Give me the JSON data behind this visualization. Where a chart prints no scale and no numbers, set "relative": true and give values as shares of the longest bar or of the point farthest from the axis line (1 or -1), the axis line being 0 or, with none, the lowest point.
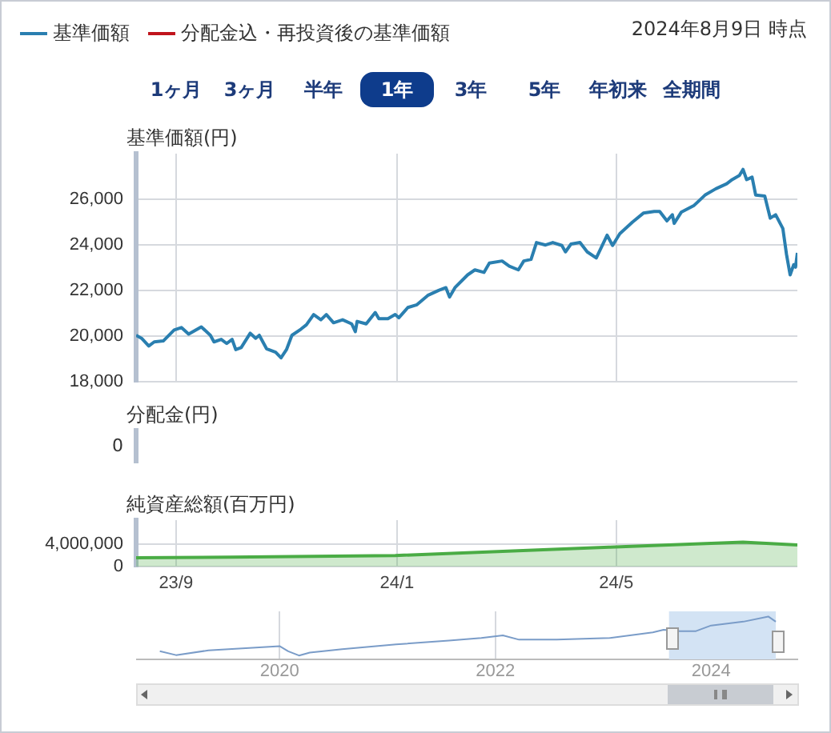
{
  "chart_data": [
    {
      "type": "line",
      "subtitle": "2024年8月9日 時点",
      "ylabel": "基準価額(円)",
      "legend": "top left",
      "tick_labels": "y",
      "grid": true,
      "marker": "none",
      "line_style": "solid",
      "annotations": [
        "1ヶ月",
        "3ヶ月",
        "半年",
        "1年",
        "3年",
        "5年",
        "年初来",
        "全期間"
      ],
      "xlim": [
        "2023-08-10",
        "2024-08-09"
      ],
      "xticks": [
        {
          "value": "2023-09-01",
          "label": null
        },
        {
          "value": "2024-01-01",
          "label": null
        },
        {
          "value": "2024-05-01",
          "label": null
        }
      ],
      "ylim": [
        18000,
        28000
      ],
      "yticks": [
        {
          "value": 18000,
          "label": "18,000"
        },
        {
          "value": 20000,
          "label": "20,000"
        },
        {
          "value": 22000,
          "label": "22,000"
        },
        {
          "value": 24000,
          "label": "24,000"
        },
        {
          "value": 26000,
          "label": "26,000"
        }
      ],
      "series": [
        {
          "name": "基準価額",
          "color": "#2a7fb0",
          "x": [
            "2023-08-10",
            "2023-08-13",
            "2023-08-17",
            "2023-08-20",
            "2023-08-25",
            "2023-08-31",
            "2023-09-04",
            "2023-09-08",
            "2023-09-15",
            "2023-09-20",
            "2023-09-22",
            "2023-09-26",
            "2023-09-29",
            "2023-10-02",
            "2023-10-04",
            "2023-10-07",
            "2023-10-12",
            "2023-10-15",
            "2023-10-17",
            "2023-10-21",
            "2023-10-26",
            "2023-10-29",
            "2023-11-01",
            "2023-11-04",
            "2023-11-09",
            "2023-11-12",
            "2023-11-16",
            "2023-11-20",
            "2023-11-23",
            "2023-11-27",
            "2023-12-02",
            "2023-12-07",
            "2023-12-09",
            "2023-12-10",
            "2023-12-15",
            "2023-12-20",
            "2023-12-22",
            "2023-12-27",
            "2023-12-31",
            "2024-01-02",
            "2024-01-07",
            "2024-01-12",
            "2024-01-18",
            "2024-01-24",
            "2024-01-28",
            "2024-01-30",
            "2024-02-02",
            "2024-02-09",
            "2024-02-13",
            "2024-02-18",
            "2024-02-21",
            "2024-02-28",
            "2024-03-03",
            "2024-03-08",
            "2024-03-11",
            "2024-03-15",
            "2024-03-18",
            "2024-03-23",
            "2024-03-27",
            "2024-04-01",
            "2024-04-03",
            "2024-04-06",
            "2024-04-11",
            "2024-04-15",
            "2024-04-20",
            "2024-04-23",
            "2024-04-26",
            "2024-04-29",
            "2024-05-03",
            "2024-05-10",
            "2024-05-16",
            "2024-05-22",
            "2024-05-25",
            "2024-05-29",
            "2024-06-01",
            "2024-06-02",
            "2024-06-06",
            "2024-06-13",
            "2024-06-19",
            "2024-06-25",
            "2024-07-01",
            "2024-07-04",
            "2024-07-08",
            "2024-07-10",
            "2024-07-12",
            "2024-07-15",
            "2024-07-17",
            "2024-07-22",
            "2024-07-25",
            "2024-07-28",
            "2024-08-01",
            "2024-08-03",
            "2024-08-05",
            "2024-08-07",
            "2024-08-08",
            "2024-08-09"
          ],
          "values": [
            20030,
            19900,
            19560,
            19740,
            19780,
            20260,
            20370,
            20080,
            20400,
            20030,
            19740,
            19850,
            19670,
            19850,
            19400,
            19490,
            20120,
            19900,
            20030,
            19440,
            19290,
            19040,
            19400,
            20030,
            20300,
            20490,
            20940,
            20710,
            20940,
            20580,
            20710,
            20530,
            20190,
            20640,
            20530,
            21030,
            20760,
            20760,
            20940,
            20800,
            21250,
            21370,
            21780,
            22000,
            22120,
            21710,
            22120,
            22680,
            22900,
            22790,
            23200,
            23290,
            23060,
            22900,
            23290,
            23360,
            24100,
            23990,
            24100,
            23970,
            23690,
            24030,
            24100,
            23690,
            23420,
            23920,
            24420,
            23970,
            24490,
            25000,
            25390,
            25460,
            25460,
            25050,
            25320,
            24940,
            25440,
            25730,
            26180,
            26460,
            26680,
            26860,
            27040,
            27310,
            26860,
            26970,
            26180,
            26140,
            25170,
            25320,
            24710,
            23580,
            22680,
            23130,
            23020,
            23650
          ]
        },
        {
          "name": "分配金込・再投資後の基準価額",
          "color": "#c0141c",
          "values": [
            null
          ]
        }
      ]
    },
    {
      "type": "other",
      "ylabel": "分配金(円)",
      "annotations": [
        "0"
      ]
    },
    {
      "type": "area",
      "ylabel": "純資産総額(百万円)",
      "grid": true,
      "marker": "none",
      "xlim": [
        "2023-08-10",
        "2024-08-09"
      ],
      "xticks": [
        {
          "value": "2023-09-01",
          "label": "23/9"
        },
        {
          "value": "2024-01-01",
          "label": "24/1"
        },
        {
          "value": "2024-05-01",
          "label": "24/5"
        }
      ],
      "ylim": [
        0,
        8400000
      ],
      "yticks": [
        {
          "value": 0,
          "label": "0"
        },
        {
          "value": 4000000,
          "label": "4,000,000"
        }
      ],
      "series": [
        {
          "color": "#4aac45",
          "x": [
            "2023-08-10",
            "2023-10-01",
            "2023-12-31",
            "2024-04-27",
            "2024-07-10",
            "2024-08-09"
          ],
          "values": [
            1600000,
            1700000,
            2000000,
            3500000,
            4400000,
            3900000
          ]
        }
      ]
    },
    {
      "type": "line",
      "relative": true,
      "grid": "x",
      "marker": "none",
      "xlim": [
        2018.67,
        2024.8
      ],
      "xticks": [
        2020,
        2022,
        2024
      ],
      "bands": [
        {
          "axis": "x",
          "from": 2023.61,
          "to": 2024.6,
          "color": "#d3e3f4"
        }
      ],
      "series": [
        {
          "color": "#7a9cc8",
          "x": [
            2018.89,
            2019.04,
            2019.34,
            2020.0,
            2020.08,
            2020.18,
            2020.28,
            2020.58,
            2021.08,
            2021.57,
            2021.87,
            2022.07,
            2022.22,
            2022.57,
            2023.06,
            2023.46,
            2023.56,
            2023.71,
            2023.86,
            2024.0,
            2024.3,
            2024.53,
            2024.6
          ],
          "values": [
            0.19,
            0.1,
            0.21,
            0.31,
            0.19,
            0.09,
            0.16,
            0.24,
            0.35,
            0.44,
            0.5,
            0.56,
            0.46,
            0.46,
            0.5,
            0.63,
            0.69,
            0.66,
            0.66,
            0.79,
            0.88,
            1,
            0.88
          ]
        }
      ]
    }
  ]
}
